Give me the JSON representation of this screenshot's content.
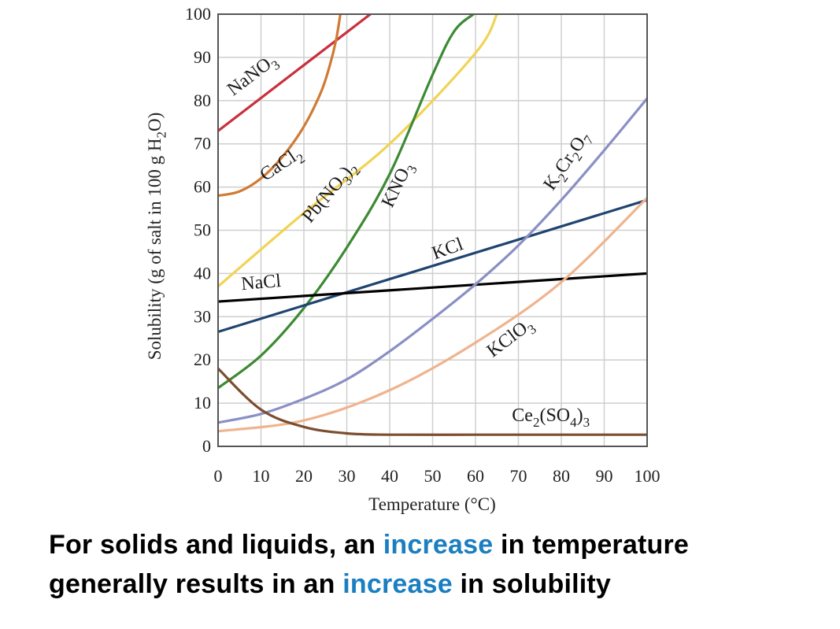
{
  "chart_data": {
    "type": "line",
    "title": "",
    "xlabel": "Temperature (°C)",
    "ylabel": "Solubility (g of salt in 100 g H2O)",
    "xlim": [
      0,
      100
    ],
    "ylim": [
      0,
      100
    ],
    "xticks": [
      0,
      10,
      20,
      30,
      40,
      50,
      60,
      70,
      80,
      90,
      100
    ],
    "yticks": [
      0,
      10,
      20,
      30,
      40,
      50,
      60,
      70,
      80,
      90,
      100
    ],
    "grid": true,
    "series": [
      {
        "name": "NaNO3",
        "color": "#c8303c",
        "x": [
          0,
          35.5
        ],
        "y": [
          73,
          100
        ]
      },
      {
        "name": "CaCl2",
        "color": "#d07a34",
        "x": [
          0,
          5,
          10,
          15,
          20,
          24,
          26,
          27.5,
          28.5
        ],
        "y": [
          58,
          59,
          62,
          67,
          74,
          82,
          88,
          94,
          100
        ]
      },
      {
        "name": "Pb(NO3)2",
        "color": "#f0d456",
        "x": [
          0,
          20,
          40,
          60,
          65
        ],
        "y": [
          37,
          54,
          70,
          91,
          100
        ]
      },
      {
        "name": "KNO3",
        "color": "#3d8a34",
        "x": [
          0,
          10,
          20,
          30,
          40,
          50,
          55,
          59.5
        ],
        "y": [
          13.5,
          21,
          32,
          46,
          63,
          86,
          96,
          100
        ]
      },
      {
        "name": "KCl",
        "color": "#1e4470",
        "x": [
          0,
          100
        ],
        "y": [
          26.5,
          57
        ]
      },
      {
        "name": "NaCl",
        "color": "#000000",
        "x": [
          0,
          100
        ],
        "y": [
          33.5,
          40
        ]
      },
      {
        "name": "K2Cr2O7",
        "color": "#8a8fc4",
        "x": [
          0,
          10,
          20,
          30,
          40,
          50,
          60,
          70,
          80,
          90,
          100
        ],
        "y": [
          5.5,
          7.5,
          11,
          15.5,
          22,
          29.5,
          37.5,
          46.5,
          57,
          68.5,
          80.5
        ]
      },
      {
        "name": "KClO3",
        "color": "#efb48e",
        "x": [
          0,
          20,
          40,
          60,
          80,
          100
        ],
        "y": [
          3.5,
          6,
          13,
          24,
          38,
          57.5
        ]
      },
      {
        "name": "Ce2(SO4)3",
        "color": "#7b4e30",
        "x": [
          0,
          10,
          20,
          30,
          40,
          60,
          80,
          100
        ],
        "y": [
          18,
          8.5,
          4.5,
          3,
          2.7,
          2.7,
          2.7,
          2.7
        ]
      }
    ],
    "annotations": [
      {
        "id": "NaNO3",
        "segments": [
          {
            "text": "NaNO",
            "sub": false
          },
          {
            "text": "3",
            "sub": true
          }
        ],
        "x": 3.5,
        "y": 81,
        "angle": -37.2
      },
      {
        "id": "CaCl2",
        "segments": [
          {
            "text": "CaCl",
            "sub": false
          },
          {
            "text": "2",
            "sub": true
          }
        ],
        "x": 11,
        "y": 61.3,
        "angle": -34
      },
      {
        "id": "Pb(NO3)2",
        "segments": [
          {
            "text": "Pb(NO",
            "sub": false
          },
          {
            "text": "3",
            "sub": true
          },
          {
            "text": ")",
            "sub": false
          },
          {
            "text": "2",
            "sub": true
          }
        ],
        "x": 21.5,
        "y": 51.5,
        "angle": -50.3
      },
      {
        "id": "KNO3",
        "segments": [
          {
            "text": "KNO",
            "sub": false
          },
          {
            "text": "3",
            "sub": true
          }
        ],
        "x": 40.5,
        "y": 55,
        "angle": -64
      },
      {
        "id": "KCl",
        "segments": [
          {
            "text": "KCl",
            "sub": false
          }
        ],
        "x": 50.5,
        "y": 43.2,
        "angle": -20
      },
      {
        "id": "NaCl",
        "segments": [
          {
            "text": "NaCl",
            "sub": false
          }
        ],
        "x": 5.5,
        "y": 36.2,
        "angle": -5
      },
      {
        "id": "K2Cr2O7",
        "segments": [
          {
            "text": "K",
            "sub": false
          },
          {
            "text": "2",
            "sub": true
          },
          {
            "text": "Cr",
            "sub": false
          },
          {
            "text": "2",
            "sub": true
          },
          {
            "text": "O",
            "sub": false
          },
          {
            "text": "7",
            "sub": true
          }
        ],
        "x": 78,
        "y": 59,
        "angle": -56
      },
      {
        "id": "KClO3",
        "segments": [
          {
            "text": "KClO",
            "sub": false
          },
          {
            "text": "3",
            "sub": true
          }
        ],
        "x": 64,
        "y": 20.5,
        "angle": -37
      },
      {
        "id": "Ce2(SO4)3",
        "segments": [
          {
            "text": "Ce",
            "sub": false
          },
          {
            "text": "2",
            "sub": true
          },
          {
            "text": "(SO",
            "sub": false
          },
          {
            "text": "4",
            "sub": true
          },
          {
            "text": ")",
            "sub": false
          },
          {
            "text": "3",
            "sub": true
          }
        ],
        "x": 68.5,
        "y": 5.8,
        "angle": 0
      }
    ]
  },
  "axis_text": {
    "xlabel": "Temperature (°C)",
    "ylabel_parts": [
      {
        "text": "Solubility (g of salt in 100 g H",
        "sub": false
      },
      {
        "text": "2",
        "sub": true
      },
      {
        "text": "O)",
        "sub": false
      }
    ]
  },
  "caption": {
    "line1_a": "For solids and liquids, an ",
    "line1_highlight": "increase",
    "line1_b": " in temperature",
    "line2_a": "generally results in an ",
    "line2_highlight": "increase",
    "line2_b": " in solubility",
    "highlight_color": "#1a7ec0"
  }
}
